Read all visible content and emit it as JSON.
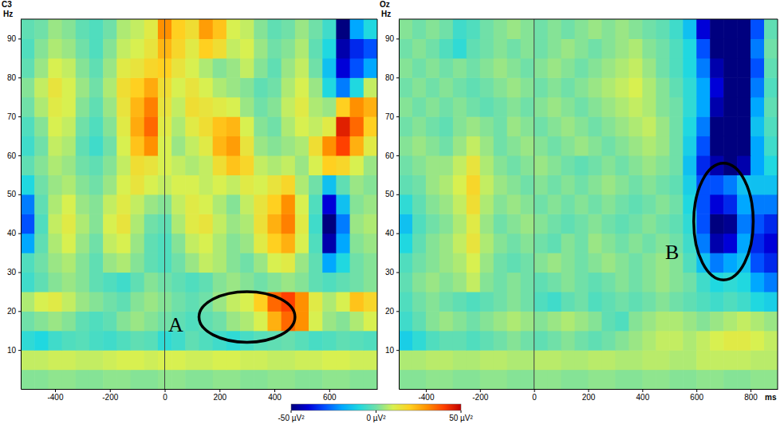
{
  "chart_data": [
    {
      "type": "heatmap",
      "title": "C3",
      "y_label": "Hz",
      "xlim": [
        -525,
        775
      ],
      "ylim": [
        0,
        95
      ],
      "xticks": [
        -400,
        -200,
        0,
        200,
        400,
        600
      ],
      "yticks": [
        10,
        20,
        30,
        40,
        50,
        60,
        70,
        80,
        90
      ],
      "x_bins": [
        -525,
        -475,
        -425,
        -375,
        -325,
        -275,
        -225,
        -175,
        -125,
        -75,
        -25,
        25,
        75,
        125,
        175,
        225,
        275,
        325,
        375,
        425,
        475,
        525,
        575,
        625,
        675,
        725,
        775
      ],
      "y_bins": [
        0,
        5,
        10,
        15,
        20,
        25,
        30,
        35,
        40,
        45,
        50,
        55,
        60,
        65,
        70,
        75,
        80,
        85,
        90,
        95
      ],
      "color_range": [
        -50,
        50
      ],
      "color_ticks": [
        {
          "value": -50,
          "label": "-50 µV²"
        },
        {
          "value": 0,
          "label": "0 µV²"
        },
        {
          "value": 50,
          "label": "50 µV²"
        }
      ],
      "reference_lines": [
        0
      ],
      "annotations": [
        {
          "label": "A",
          "x": 300,
          "y": 18.5,
          "rx": 175,
          "ry": 6.5,
          "label_x": 40,
          "label_y": 16
        }
      ],
      "cells": [
        [
          2,
          2,
          3,
          3,
          2,
          2,
          3,
          3,
          2,
          2,
          3,
          3,
          2,
          2,
          3,
          3,
          2,
          2,
          3,
          3,
          2,
          2,
          3,
          3,
          2,
          2
        ],
        [
          8,
          8,
          9,
          9,
          8,
          8,
          9,
          10,
          10,
          9,
          10,
          10,
          9,
          9,
          10,
          10,
          9,
          9,
          8,
          8,
          9,
          9,
          10,
          10,
          9,
          9
        ],
        [
          -8,
          -10,
          -6,
          -4,
          -3,
          -5,
          -6,
          -4,
          -2,
          -3,
          -8,
          -6,
          -2,
          -4,
          -6,
          -8,
          -5,
          -3,
          -2,
          -1,
          -3,
          -5,
          -4,
          -2,
          -3,
          -4
        ],
        [
          0,
          2,
          4,
          2,
          -2,
          -4,
          -2,
          2,
          4,
          2,
          0,
          -2,
          -4,
          -2,
          0,
          4,
          6,
          10,
          25,
          35,
          30,
          10,
          4,
          2,
          6,
          10
        ],
        [
          6,
          10,
          12,
          8,
          4,
          2,
          0,
          -2,
          2,
          4,
          2,
          0,
          -2,
          0,
          4,
          8,
          10,
          20,
          35,
          40,
          30,
          12,
          6,
          10,
          22,
          18
        ],
        [
          -6,
          -2,
          2,
          4,
          2,
          -2,
          -4,
          -6,
          -2,
          2,
          0,
          -2,
          -4,
          -2,
          2,
          4,
          2,
          0,
          2,
          4,
          2,
          -2,
          -4,
          -2,
          0,
          2
        ],
        [
          -4,
          0,
          4,
          6,
          2,
          -2,
          4,
          6,
          2,
          -2,
          -4,
          0,
          4,
          8,
          6,
          2,
          0,
          4,
          10,
          12,
          4,
          -2,
          -20,
          -10,
          0,
          2
        ],
        [
          -20,
          -2,
          6,
          10,
          4,
          0,
          8,
          10,
          4,
          -2,
          -4,
          2,
          8,
          10,
          6,
          2,
          4,
          12,
          20,
          25,
          10,
          -4,
          -45,
          -20,
          2,
          4
        ],
        [
          -30,
          -4,
          8,
          12,
          6,
          2,
          10,
          14,
          6,
          0,
          -2,
          6,
          12,
          14,
          8,
          4,
          6,
          15,
          25,
          32,
          12,
          -6,
          -50,
          -25,
          4,
          6
        ],
        [
          -25,
          -2,
          6,
          10,
          4,
          2,
          8,
          12,
          8,
          4,
          2,
          8,
          12,
          10,
          6,
          2,
          8,
          14,
          20,
          30,
          10,
          -4,
          -40,
          -15,
          2,
          4
        ],
        [
          -10,
          0,
          4,
          6,
          2,
          0,
          4,
          10,
          14,
          10,
          8,
          10,
          10,
          8,
          10,
          8,
          12,
          10,
          14,
          18,
          6,
          0,
          -15,
          -2,
          4,
          2
        ],
        [
          -2,
          2,
          6,
          4,
          0,
          -2,
          2,
          8,
          16,
          14,
          10,
          8,
          6,
          8,
          16,
          22,
          18,
          8,
          6,
          8,
          4,
          10,
          20,
          18,
          10,
          4
        ],
        [
          -6,
          0,
          8,
          6,
          -2,
          -6,
          0,
          10,
          22,
          30,
          10,
          4,
          8,
          12,
          24,
          28,
          14,
          4,
          2,
          4,
          6,
          16,
          30,
          40,
          25,
          12
        ],
        [
          -4,
          2,
          10,
          8,
          0,
          -4,
          2,
          12,
          26,
          35,
          12,
          6,
          12,
          16,
          22,
          24,
          10,
          2,
          0,
          6,
          10,
          8,
          12,
          45,
          35,
          20
        ],
        [
          0,
          6,
          12,
          10,
          2,
          -2,
          4,
          14,
          24,
          32,
          14,
          8,
          16,
          14,
          12,
          10,
          4,
          0,
          2,
          8,
          12,
          6,
          4,
          20,
          30,
          25
        ],
        [
          2,
          8,
          14,
          10,
          4,
          0,
          6,
          16,
          20,
          26,
          16,
          10,
          14,
          10,
          6,
          4,
          2,
          -2,
          0,
          6,
          10,
          4,
          -10,
          -25,
          -10,
          8
        ],
        [
          -2,
          4,
          10,
          8,
          2,
          -2,
          4,
          12,
          14,
          18,
          20,
          14,
          10,
          6,
          2,
          4,
          8,
          2,
          -2,
          4,
          8,
          0,
          -15,
          -40,
          -30,
          -20
        ],
        [
          -4,
          2,
          6,
          4,
          0,
          -4,
          2,
          8,
          10,
          14,
          24,
          18,
          12,
          20,
          16,
          8,
          10,
          4,
          0,
          2,
          6,
          -2,
          -10,
          -45,
          -35,
          -30
        ],
        [
          -2,
          0,
          4,
          2,
          -2,
          -4,
          0,
          6,
          8,
          12,
          30,
          20,
          16,
          28,
          22,
          10,
          8,
          2,
          -2,
          0,
          4,
          0,
          -6,
          -50,
          -20,
          -10
        ]
      ]
    },
    {
      "type": "heatmap",
      "title": "Oz",
      "y_label": "Hz",
      "x_label": "ms",
      "xlim": [
        -500,
        900
      ],
      "ylim": [
        0,
        95
      ],
      "xticks": [
        -400,
        -200,
        0,
        200,
        400,
        600,
        800
      ],
      "yticks": [
        10,
        20,
        30,
        40,
        50,
        60,
        70,
        80,
        90
      ],
      "x_bins": [
        -500,
        -450,
        -400,
        -350,
        -300,
        -250,
        -200,
        -150,
        -100,
        -50,
        0,
        50,
        100,
        150,
        200,
        250,
        300,
        350,
        400,
        450,
        500,
        550,
        600,
        650,
        700,
        750,
        800,
        850,
        900
      ],
      "y_bins": [
        0,
        5,
        10,
        15,
        20,
        25,
        30,
        35,
        40,
        45,
        50,
        55,
        60,
        65,
        70,
        75,
        80,
        85,
        90,
        95
      ],
      "color_range": [
        -50,
        50
      ],
      "reference_lines": [
        0
      ],
      "annotations": [
        {
          "label": "B",
          "x": 700,
          "y": 43,
          "rx": 110,
          "ry": 15,
          "label_x": 510,
          "label_y": 34.5
        }
      ],
      "cells": [
        [
          2,
          2,
          3,
          3,
          2,
          2,
          3,
          3,
          2,
          2,
          3,
          3,
          2,
          2,
          3,
          3,
          2,
          2,
          3,
          3,
          2,
          2,
          3,
          3,
          2,
          2,
          3,
          3
        ],
        [
          6,
          6,
          7,
          7,
          6,
          6,
          7,
          7,
          6,
          6,
          7,
          7,
          6,
          6,
          7,
          7,
          6,
          6,
          7,
          7,
          6,
          6,
          8,
          8,
          8,
          8,
          7,
          7
        ],
        [
          -12,
          -8,
          -4,
          -2,
          -2,
          -4,
          -2,
          0,
          2,
          0,
          -2,
          0,
          2,
          0,
          -2,
          0,
          2,
          4,
          6,
          8,
          8,
          6,
          8,
          10,
          12,
          12,
          10,
          8
        ],
        [
          -6,
          -2,
          2,
          4,
          2,
          0,
          2,
          4,
          6,
          4,
          2,
          4,
          6,
          4,
          2,
          -2,
          -4,
          2,
          4,
          6,
          6,
          4,
          2,
          4,
          6,
          8,
          6,
          4
        ],
        [
          -4,
          0,
          2,
          0,
          -2,
          -4,
          -2,
          0,
          2,
          0,
          -4,
          -6,
          -2,
          0,
          -4,
          -2,
          0,
          -2,
          0,
          2,
          0,
          -2,
          -4,
          -6,
          -4,
          -6,
          -10,
          -12
        ],
        [
          -2,
          2,
          4,
          2,
          4,
          8,
          2,
          0,
          2,
          0,
          -2,
          0,
          2,
          0,
          -2,
          0,
          2,
          0,
          2,
          4,
          2,
          0,
          -6,
          -10,
          -8,
          -10,
          -20,
          -25
        ],
        [
          -4,
          0,
          2,
          4,
          6,
          10,
          4,
          0,
          -2,
          0,
          2,
          4,
          2,
          0,
          2,
          4,
          2,
          0,
          2,
          4,
          2,
          -4,
          -15,
          -25,
          -20,
          -15,
          -30,
          -35
        ],
        [
          -10,
          -2,
          2,
          4,
          8,
          14,
          6,
          2,
          0,
          2,
          0,
          -2,
          2,
          0,
          4,
          2,
          0,
          2,
          0,
          2,
          0,
          -6,
          -25,
          -45,
          -40,
          -20,
          -35,
          -40
        ],
        [
          -15,
          -4,
          0,
          2,
          6,
          12,
          4,
          0,
          2,
          4,
          2,
          0,
          -2,
          0,
          2,
          0,
          -2,
          0,
          2,
          0,
          -2,
          -8,
          -30,
          -50,
          -48,
          -25,
          -30,
          -35
        ],
        [
          -8,
          -2,
          2,
          4,
          8,
          16,
          6,
          2,
          4,
          2,
          0,
          2,
          0,
          2,
          0,
          2,
          0,
          -2,
          0,
          2,
          0,
          -10,
          -30,
          -40,
          -35,
          -20,
          -25,
          -25
        ],
        [
          -2,
          0,
          4,
          6,
          10,
          18,
          8,
          4,
          2,
          0,
          2,
          0,
          2,
          0,
          2,
          4,
          2,
          0,
          2,
          0,
          -2,
          -12,
          -30,
          -30,
          -25,
          -15,
          -15,
          -15
        ],
        [
          0,
          2,
          4,
          4,
          8,
          14,
          6,
          2,
          0,
          2,
          4,
          2,
          0,
          -2,
          0,
          2,
          0,
          2,
          4,
          2,
          0,
          -15,
          -35,
          -45,
          -50,
          -45,
          -20,
          -10
        ],
        [
          2,
          4,
          2,
          0,
          4,
          8,
          4,
          0,
          2,
          4,
          2,
          0,
          2,
          4,
          2,
          0,
          2,
          4,
          6,
          4,
          0,
          -12,
          -30,
          -50,
          -50,
          -50,
          -20,
          -6
        ],
        [
          0,
          2,
          0,
          -2,
          2,
          4,
          2,
          0,
          4,
          2,
          0,
          2,
          4,
          2,
          0,
          2,
          4,
          6,
          8,
          4,
          0,
          -10,
          -25,
          -50,
          -50,
          -50,
          -15,
          -4
        ],
        [
          2,
          0,
          2,
          0,
          2,
          0,
          -2,
          0,
          2,
          0,
          2,
          4,
          2,
          0,
          2,
          4,
          6,
          8,
          6,
          2,
          0,
          -8,
          -20,
          -45,
          -50,
          -50,
          -20,
          -2
        ],
        [
          0,
          2,
          0,
          2,
          0,
          -2,
          0,
          2,
          4,
          2,
          0,
          2,
          0,
          2,
          4,
          6,
          8,
          10,
          6,
          2,
          -2,
          -8,
          -20,
          -40,
          -50,
          -50,
          -25,
          -4
        ],
        [
          2,
          0,
          2,
          0,
          2,
          0,
          2,
          4,
          2,
          0,
          2,
          4,
          2,
          0,
          2,
          4,
          6,
          8,
          4,
          0,
          -4,
          -10,
          -25,
          -45,
          -50,
          -50,
          -30,
          -2
        ],
        [
          0,
          2,
          0,
          -4,
          -8,
          -2,
          0,
          2,
          0,
          2,
          0,
          2,
          4,
          2,
          0,
          2,
          4,
          6,
          2,
          0,
          -4,
          -10,
          -30,
          -50,
          -50,
          -50,
          -25,
          0
        ],
        [
          2,
          0,
          2,
          0,
          -6,
          -4,
          0,
          2,
          4,
          2,
          0,
          2,
          0,
          2,
          4,
          2,
          4,
          2,
          0,
          -2,
          -6,
          -15,
          -40,
          -50,
          -50,
          -50,
          -30,
          -2
        ]
      ]
    }
  ]
}
